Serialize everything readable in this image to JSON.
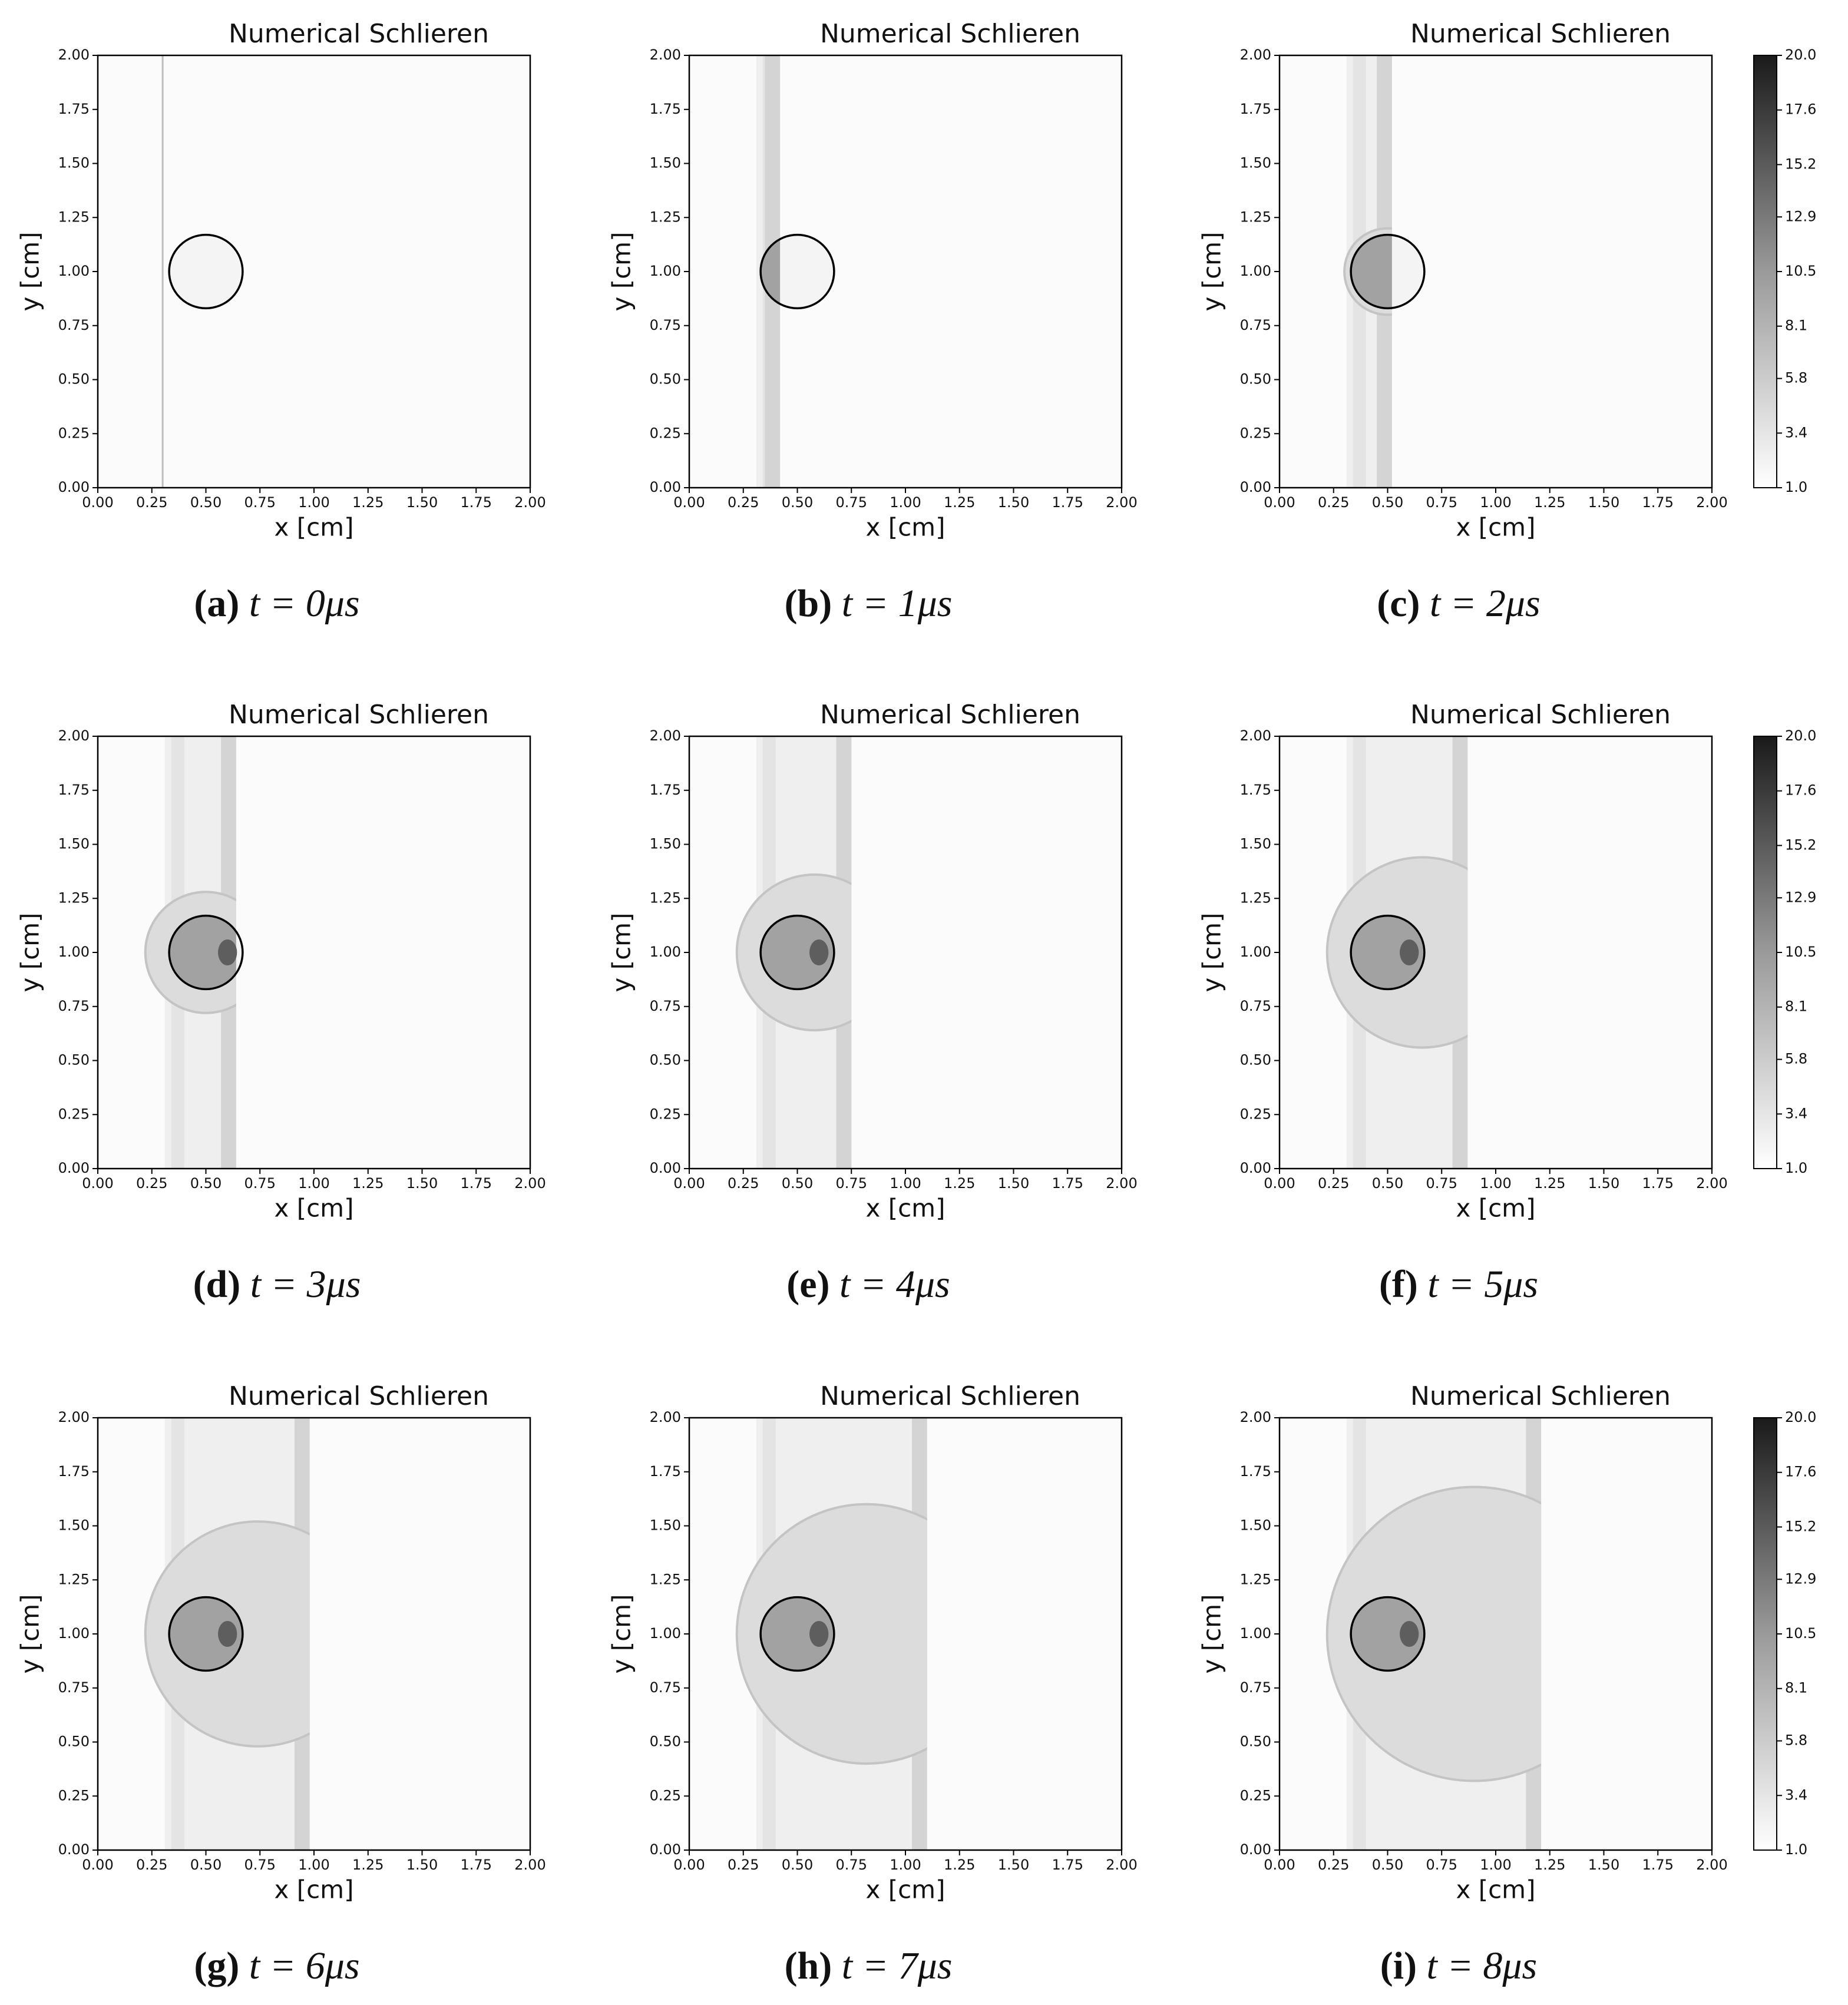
{
  "chart_data": [
    {
      "type": "heatmap",
      "title": "Numerical Schlieren",
      "xlabel": "x [cm]",
      "ylabel": "y [cm]",
      "caption": {
        "label": "(a)",
        "text": "t = 0μs"
      },
      "xlim": [
        0,
        2
      ],
      "ylim": [
        0,
        2
      ],
      "xticks": [
        {
          "value": 0,
          "label": "0.00"
        },
        {
          "value": 0.25,
          "label": "0.25"
        },
        {
          "value": 0.5,
          "label": "0.50"
        },
        {
          "value": 0.75,
          "label": "0.75"
        },
        {
          "value": 1,
          "label": "1.00"
        },
        {
          "value": 1.25,
          "label": "1.25"
        },
        {
          "value": 1.5,
          "label": "1.50"
        },
        {
          "value": 1.75,
          "label": "1.75"
        },
        {
          "value": 2,
          "label": "2.00"
        }
      ],
      "yticks": [
        {
          "value": 0,
          "label": "0.00"
        },
        {
          "value": 0.25,
          "label": "0.25"
        },
        {
          "value": 0.5,
          "label": "0.50"
        },
        {
          "value": 0.75,
          "label": "0.75"
        },
        {
          "value": 1,
          "label": "1.00"
        },
        {
          "value": 1.25,
          "label": "1.25"
        },
        {
          "value": 1.5,
          "label": "1.50"
        },
        {
          "value": 1.75,
          "label": "1.75"
        },
        {
          "value": 2,
          "label": "2.00"
        }
      ]
    },
    {
      "type": "heatmap",
      "title": "Numerical Schlieren",
      "xlabel": "x [cm]",
      "ylabel": "y [cm]",
      "caption": {
        "label": "(b)",
        "text": "t = 1μs"
      },
      "xlim": [
        0,
        2
      ],
      "ylim": [
        0,
        2
      ],
      "xticks": [
        {
          "value": 0,
          "label": "0.00"
        },
        {
          "value": 0.25,
          "label": "0.25"
        },
        {
          "value": 0.5,
          "label": "0.50"
        },
        {
          "value": 0.75,
          "label": "0.75"
        },
        {
          "value": 1,
          "label": "1.00"
        },
        {
          "value": 1.25,
          "label": "1.25"
        },
        {
          "value": 1.5,
          "label": "1.50"
        },
        {
          "value": 1.75,
          "label": "1.75"
        },
        {
          "value": 2,
          "label": "2.00"
        }
      ],
      "yticks": [
        {
          "value": 0,
          "label": "0.00"
        },
        {
          "value": 0.25,
          "label": "0.25"
        },
        {
          "value": 0.5,
          "label": "0.50"
        },
        {
          "value": 0.75,
          "label": "0.75"
        },
        {
          "value": 1,
          "label": "1.00"
        },
        {
          "value": 1.25,
          "label": "1.25"
        },
        {
          "value": 1.5,
          "label": "1.50"
        },
        {
          "value": 1.75,
          "label": "1.75"
        },
        {
          "value": 2,
          "label": "2.00"
        }
      ]
    },
    {
      "type": "heatmap",
      "title": "Numerical Schlieren",
      "xlabel": "x [cm]",
      "ylabel": "y [cm]",
      "caption": {
        "label": "(c)",
        "text": "t = 2μs"
      },
      "xlim": [
        0,
        2
      ],
      "ylim": [
        0,
        2
      ],
      "xticks": [
        {
          "value": 0,
          "label": "0.00"
        },
        {
          "value": 0.25,
          "label": "0.25"
        },
        {
          "value": 0.5,
          "label": "0.50"
        },
        {
          "value": 0.75,
          "label": "0.75"
        },
        {
          "value": 1,
          "label": "1.00"
        },
        {
          "value": 1.25,
          "label": "1.25"
        },
        {
          "value": 1.5,
          "label": "1.50"
        },
        {
          "value": 1.75,
          "label": "1.75"
        },
        {
          "value": 2,
          "label": "2.00"
        }
      ],
      "yticks": [
        {
          "value": 0,
          "label": "0.00"
        },
        {
          "value": 0.25,
          "label": "0.25"
        },
        {
          "value": 0.5,
          "label": "0.50"
        },
        {
          "value": 0.75,
          "label": "0.75"
        },
        {
          "value": 1,
          "label": "1.00"
        },
        {
          "value": 1.25,
          "label": "1.25"
        },
        {
          "value": 1.5,
          "label": "1.50"
        },
        {
          "value": 1.75,
          "label": "1.75"
        },
        {
          "value": 2,
          "label": "2.00"
        }
      ],
      "colorbar": {
        "lim": [
          1,
          20
        ],
        "ticks": [
          {
            "value": 1,
            "label": "1.0"
          },
          3.4,
          5.8,
          8.1,
          10.5,
          12.9,
          15.2,
          17.6,
          {
            "value": 20,
            "label": "20.0"
          }
        ]
      }
    },
    {
      "type": "heatmap",
      "title": "Numerical Schlieren",
      "xlabel": "x [cm]",
      "ylabel": "y [cm]",
      "caption": {
        "label": "(d)",
        "text": "t = 3μs"
      },
      "xlim": [
        0,
        2
      ],
      "ylim": [
        0,
        2
      ],
      "xticks": [
        {
          "value": 0,
          "label": "0.00"
        },
        {
          "value": 0.25,
          "label": "0.25"
        },
        {
          "value": 0.5,
          "label": "0.50"
        },
        {
          "value": 0.75,
          "label": "0.75"
        },
        {
          "value": 1,
          "label": "1.00"
        },
        {
          "value": 1.25,
          "label": "1.25"
        },
        {
          "value": 1.5,
          "label": "1.50"
        },
        {
          "value": 1.75,
          "label": "1.75"
        },
        {
          "value": 2,
          "label": "2.00"
        }
      ],
      "yticks": [
        {
          "value": 0,
          "label": "0.00"
        },
        {
          "value": 0.25,
          "label": "0.25"
        },
        {
          "value": 0.5,
          "label": "0.50"
        },
        {
          "value": 0.75,
          "label": "0.75"
        },
        {
          "value": 1,
          "label": "1.00"
        },
        {
          "value": 1.25,
          "label": "1.25"
        },
        {
          "value": 1.5,
          "label": "1.50"
        },
        {
          "value": 1.75,
          "label": "1.75"
        },
        {
          "value": 2,
          "label": "2.00"
        }
      ]
    },
    {
      "type": "heatmap",
      "title": "Numerical Schlieren",
      "xlabel": "x [cm]",
      "ylabel": "y [cm]",
      "caption": {
        "label": "(e)",
        "text": "t = 4μs"
      },
      "xlim": [
        0,
        2
      ],
      "ylim": [
        0,
        2
      ],
      "xticks": [
        {
          "value": 0,
          "label": "0.00"
        },
        {
          "value": 0.25,
          "label": "0.25"
        },
        {
          "value": 0.5,
          "label": "0.50"
        },
        {
          "value": 0.75,
          "label": "0.75"
        },
        {
          "value": 1,
          "label": "1.00"
        },
        {
          "value": 1.25,
          "label": "1.25"
        },
        {
          "value": 1.5,
          "label": "1.50"
        },
        {
          "value": 1.75,
          "label": "1.75"
        },
        {
          "value": 2,
          "label": "2.00"
        }
      ],
      "yticks": [
        {
          "value": 0,
          "label": "0.00"
        },
        {
          "value": 0.25,
          "label": "0.25"
        },
        {
          "value": 0.5,
          "label": "0.50"
        },
        {
          "value": 0.75,
          "label": "0.75"
        },
        {
          "value": 1,
          "label": "1.00"
        },
        {
          "value": 1.25,
          "label": "1.25"
        },
        {
          "value": 1.5,
          "label": "1.50"
        },
        {
          "value": 1.75,
          "label": "1.75"
        },
        {
          "value": 2,
          "label": "2.00"
        }
      ]
    },
    {
      "type": "heatmap",
      "title": "Numerical Schlieren",
      "xlabel": "x [cm]",
      "ylabel": "y [cm]",
      "caption": {
        "label": "(f)",
        "text": "t = 5μs"
      },
      "xlim": [
        0,
        2
      ],
      "ylim": [
        0,
        2
      ],
      "xticks": [
        {
          "value": 0,
          "label": "0.00"
        },
        {
          "value": 0.25,
          "label": "0.25"
        },
        {
          "value": 0.5,
          "label": "0.50"
        },
        {
          "value": 0.75,
          "label": "0.75"
        },
        {
          "value": 1,
          "label": "1.00"
        },
        {
          "value": 1.25,
          "label": "1.25"
        },
        {
          "value": 1.5,
          "label": "1.50"
        },
        {
          "value": 1.75,
          "label": "1.75"
        },
        {
          "value": 2,
          "label": "2.00"
        }
      ],
      "yticks": [
        {
          "value": 0,
          "label": "0.00"
        },
        {
          "value": 0.25,
          "label": "0.25"
        },
        {
          "value": 0.5,
          "label": "0.50"
        },
        {
          "value": 0.75,
          "label": "0.75"
        },
        {
          "value": 1,
          "label": "1.00"
        },
        {
          "value": 1.25,
          "label": "1.25"
        },
        {
          "value": 1.5,
          "label": "1.50"
        },
        {
          "value": 1.75,
          "label": "1.75"
        },
        {
          "value": 2,
          "label": "2.00"
        }
      ],
      "colorbar": {
        "lim": [
          1,
          20
        ],
        "ticks": [
          {
            "value": 1,
            "label": "1.0"
          },
          3.4,
          5.8,
          8.1,
          10.5,
          12.9,
          15.2,
          17.6,
          {
            "value": 20,
            "label": "20.0"
          }
        ]
      }
    },
    {
      "type": "heatmap",
      "title": "Numerical Schlieren",
      "xlabel": "x [cm]",
      "ylabel": "y [cm]",
      "caption": {
        "label": "(g)",
        "text": "t = 6μs"
      },
      "xlim": [
        0,
        2
      ],
      "ylim": [
        0,
        2
      ],
      "xticks": [
        {
          "value": 0,
          "label": "0.00"
        },
        {
          "value": 0.25,
          "label": "0.25"
        },
        {
          "value": 0.5,
          "label": "0.50"
        },
        {
          "value": 0.75,
          "label": "0.75"
        },
        {
          "value": 1,
          "label": "1.00"
        },
        {
          "value": 1.25,
          "label": "1.25"
        },
        {
          "value": 1.5,
          "label": "1.50"
        },
        {
          "value": 1.75,
          "label": "1.75"
        },
        {
          "value": 2,
          "label": "2.00"
        }
      ],
      "yticks": [
        {
          "value": 0,
          "label": "0.00"
        },
        {
          "value": 0.25,
          "label": "0.25"
        },
        {
          "value": 0.5,
          "label": "0.50"
        },
        {
          "value": 0.75,
          "label": "0.75"
        },
        {
          "value": 1,
          "label": "1.00"
        },
        {
          "value": 1.25,
          "label": "1.25"
        },
        {
          "value": 1.5,
          "label": "1.50"
        },
        {
          "value": 1.75,
          "label": "1.75"
        },
        {
          "value": 2,
          "label": "2.00"
        }
      ]
    },
    {
      "type": "heatmap",
      "title": "Numerical Schlieren",
      "xlabel": "x [cm]",
      "ylabel": "y [cm]",
      "caption": {
        "label": "(h)",
        "text": "t = 7μs"
      },
      "xlim": [
        0,
        2
      ],
      "ylim": [
        0,
        2
      ],
      "xticks": [
        {
          "value": 0,
          "label": "0.00"
        },
        {
          "value": 0.25,
          "label": "0.25"
        },
        {
          "value": 0.5,
          "label": "0.50"
        },
        {
          "value": 0.75,
          "label": "0.75"
        },
        {
          "value": 1,
          "label": "1.00"
        },
        {
          "value": 1.25,
          "label": "1.25"
        },
        {
          "value": 1.5,
          "label": "1.50"
        },
        {
          "value": 1.75,
          "label": "1.75"
        },
        {
          "value": 2,
          "label": "2.00"
        }
      ],
      "yticks": [
        {
          "value": 0,
          "label": "0.00"
        },
        {
          "value": 0.25,
          "label": "0.25"
        },
        {
          "value": 0.5,
          "label": "0.50"
        },
        {
          "value": 0.75,
          "label": "0.75"
        },
        {
          "value": 1,
          "label": "1.00"
        },
        {
          "value": 1.25,
          "label": "1.25"
        },
        {
          "value": 1.5,
          "label": "1.50"
        },
        {
          "value": 1.75,
          "label": "1.75"
        },
        {
          "value": 2,
          "label": "2.00"
        }
      ]
    },
    {
      "type": "heatmap",
      "title": "Numerical Schlieren",
      "xlabel": "x [cm]",
      "ylabel": "y [cm]",
      "caption": {
        "label": "(i)",
        "text": "t = 8μs"
      },
      "xlim": [
        0,
        2
      ],
      "ylim": [
        0,
        2
      ],
      "xticks": [
        {
          "value": 0,
          "label": "0.00"
        },
        {
          "value": 0.25,
          "label": "0.25"
        },
        {
          "value": 0.5,
          "label": "0.50"
        },
        {
          "value": 0.75,
          "label": "0.75"
        },
        {
          "value": 1,
          "label": "1.00"
        },
        {
          "value": 1.25,
          "label": "1.25"
        },
        {
          "value": 1.5,
          "label": "1.50"
        },
        {
          "value": 1.75,
          "label": "1.75"
        },
        {
          "value": 2,
          "label": "2.00"
        }
      ],
      "yticks": [
        {
          "value": 0,
          "label": "0.00"
        },
        {
          "value": 0.25,
          "label": "0.25"
        },
        {
          "value": 0.5,
          "label": "0.50"
        },
        {
          "value": 0.75,
          "label": "0.75"
        },
        {
          "value": 1,
          "label": "1.00"
        },
        {
          "value": 1.25,
          "label": "1.25"
        },
        {
          "value": 1.5,
          "label": "1.50"
        },
        {
          "value": 1.75,
          "label": "1.75"
        },
        {
          "value": 2,
          "label": "2.00"
        }
      ],
      "colorbar": {
        "lim": [
          1,
          20
        ],
        "ticks": [
          {
            "value": 1,
            "label": "1.0"
          },
          3.4,
          5.8,
          8.1,
          10.5,
          12.9,
          15.2,
          17.6,
          {
            "value": 20,
            "label": "20.0"
          }
        ]
      }
    }
  ]
}
